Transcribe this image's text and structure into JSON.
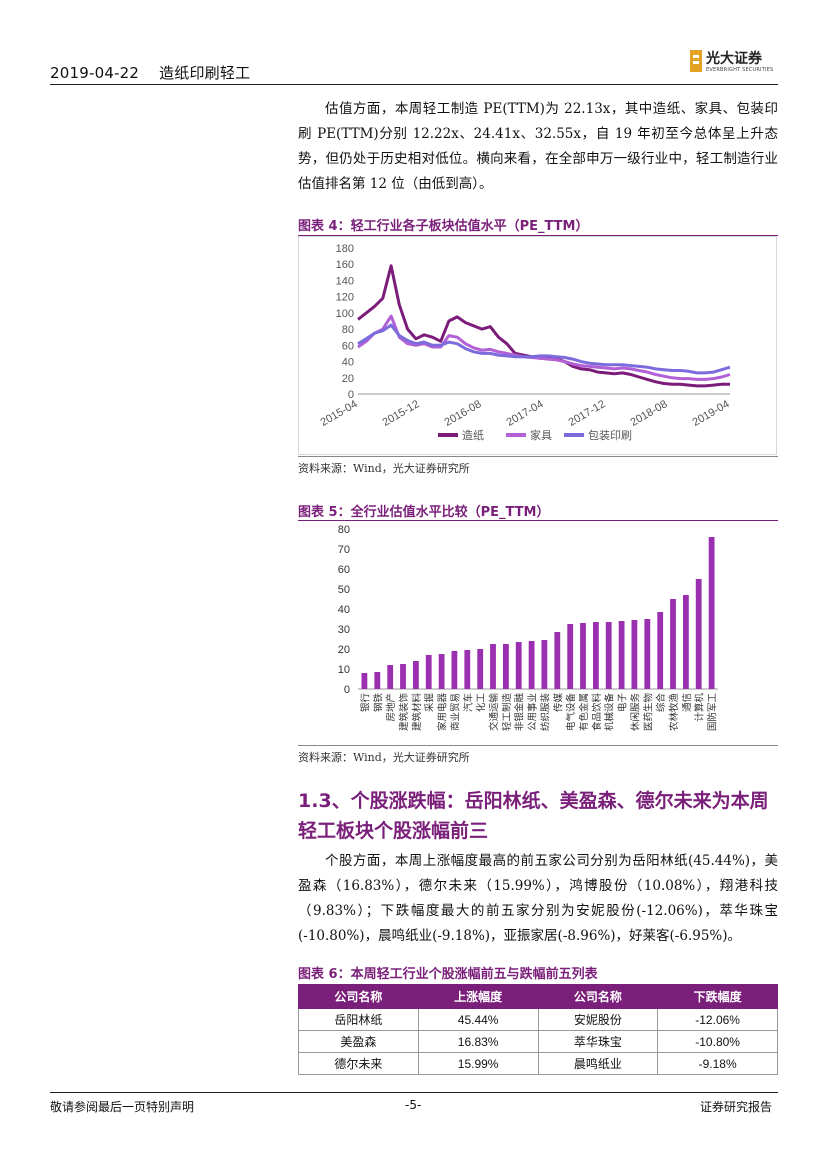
{
  "header": {
    "date": "2019-04-22",
    "industry": "造纸印刷轻工",
    "logo_cn": "光大证券",
    "logo_en": "EVERBRIGHT SECURITIES"
  },
  "intro_paragraph": "估值方面，本周轻工制造 PE(TTM)为 22.13x，其中造纸、家具、包装印刷 PE(TTM)分别 12.22x、24.41x、32.55x，自 19 年初至今总体呈上升态势，但仍处于历史相对低位。横向来看，在全部申万一级行业中，轻工制造行业估值排名第 12 位（由低到高）。",
  "figure4": {
    "title": "图表 4：轻工行业各子板块估值水平（PE_TTM）",
    "source": "资料来源：Wind，光大证券研究所"
  },
  "figure5": {
    "title": "图表 5：全行业估值水平比较（PE_TTM）",
    "source": "资料来源：Wind，光大证券研究所"
  },
  "section": {
    "title_line1": "1.3、个股涨跌幅：岳阳林纸、美盈森、德尔未来为本周",
    "title_line2": "轻工板块个股涨幅前三",
    "paragraph": "个股方面，本周上涨幅度最高的前五家公司分别为岳阳林纸(45.44%)，美盈森（16.83%），德尔未来（15.99%），鸿博股份（10.08%），翔港科技（9.83%）；下跌幅度最大的前五家分别为安妮股份(-12.06%)，萃华珠宝(-10.80%)，晨鸣纸业(-9.18%)，亚振家居(-8.96%)，好莱客(-6.95%)。"
  },
  "figure6": {
    "title": "图表 6：本周轻工行业个股涨幅前五与跌幅前五列表",
    "headers": [
      "公司名称",
      "上涨幅度",
      "公司名称",
      "下跌幅度"
    ],
    "rows": [
      [
        "岳阳林纸",
        "45.44%",
        "安妮股份",
        "-12.06%"
      ],
      [
        "美盈森",
        "16.83%",
        "萃华珠宝",
        "-10.80%"
      ],
      [
        "德尔未来",
        "15.99%",
        "晨鸣纸业",
        "-9.18%"
      ]
    ]
  },
  "footer": {
    "left": "敬请参阅最后一页特别声明",
    "center": "-5-",
    "right": "证券研究报告"
  },
  "chart_data": [
    {
      "type": "line",
      "title": "",
      "x_ticks": [
        "2015-04",
        "2015-12",
        "2016-08",
        "2017-04",
        "2017-12",
        "2018-08",
        "2019-04"
      ],
      "ylim": [
        0,
        180
      ],
      "y_ticks": [
        0,
        20,
        40,
        60,
        80,
        100,
        120,
        140,
        160,
        180
      ],
      "legend_position": "bottom",
      "grid": false,
      "series": [
        {
          "name": "造纸",
          "color": "#7b1c7b",
          "values": [
            92,
            100,
            108,
            118,
            158,
            110,
            80,
            68,
            73,
            70,
            65,
            90,
            95,
            88,
            84,
            80,
            83,
            70,
            62,
            50,
            48,
            46,
            44,
            44,
            44,
            40,
            34,
            31,
            30,
            27,
            26,
            25,
            26,
            24,
            21,
            18,
            15,
            13,
            12,
            12,
            11,
            10,
            10,
            11,
            12,
            12
          ]
        },
        {
          "name": "家具",
          "color": "#b360d6",
          "values": [
            58,
            65,
            75,
            80,
            96,
            70,
            62,
            60,
            62,
            58,
            58,
            72,
            70,
            62,
            57,
            54,
            55,
            52,
            50,
            48,
            46,
            45,
            44,
            43,
            42,
            40,
            37,
            35,
            34,
            33,
            32,
            31,
            32,
            31,
            29,
            27,
            24,
            22,
            20,
            19,
            19,
            18,
            18,
            19,
            21,
            24
          ]
        },
        {
          "name": "包装印刷",
          "color": "#7c6bdc",
          "values": [
            62,
            68,
            75,
            78,
            85,
            72,
            66,
            62,
            64,
            60,
            60,
            64,
            62,
            56,
            52,
            50,
            50,
            48,
            47,
            46,
            46,
            46,
            47,
            47,
            46,
            45,
            43,
            40,
            38,
            37,
            36,
            36,
            36,
            35,
            34,
            33,
            31,
            30,
            29,
            29,
            28,
            26,
            26,
            27,
            30,
            33
          ]
        }
      ]
    },
    {
      "type": "bar",
      "title": "",
      "ylim": [
        0,
        80
      ],
      "y_ticks": [
        0,
        10,
        20,
        30,
        40,
        50,
        60,
        70,
        80
      ],
      "color": "#9a2fb0",
      "grid": false,
      "categories": [
        "银行",
        "钢铁",
        "房地产",
        "建筑装饰",
        "建筑材料",
        "采掘",
        "家用电器",
        "商业贸易",
        "汽车",
        "化工",
        "交通运输",
        "轻工制造",
        "非银金融",
        "公用事业",
        "纺织服装",
        "传媒",
        "电气设备",
        "有色金属",
        "食品饮料",
        "机械设备",
        "电子",
        "休闲服务",
        "医药生物",
        "综合",
        "农林牧渔",
        "通信",
        "计算机",
        "国防军工"
      ],
      "values": [
        8,
        8.5,
        12,
        12.5,
        14,
        17,
        17.5,
        19,
        19.5,
        20,
        22.5,
        22.5,
        23.5,
        24,
        24.5,
        28.5,
        32.5,
        33,
        33.5,
        33.5,
        34,
        34.5,
        35,
        38.5,
        45,
        47,
        55,
        76
      ]
    }
  ]
}
